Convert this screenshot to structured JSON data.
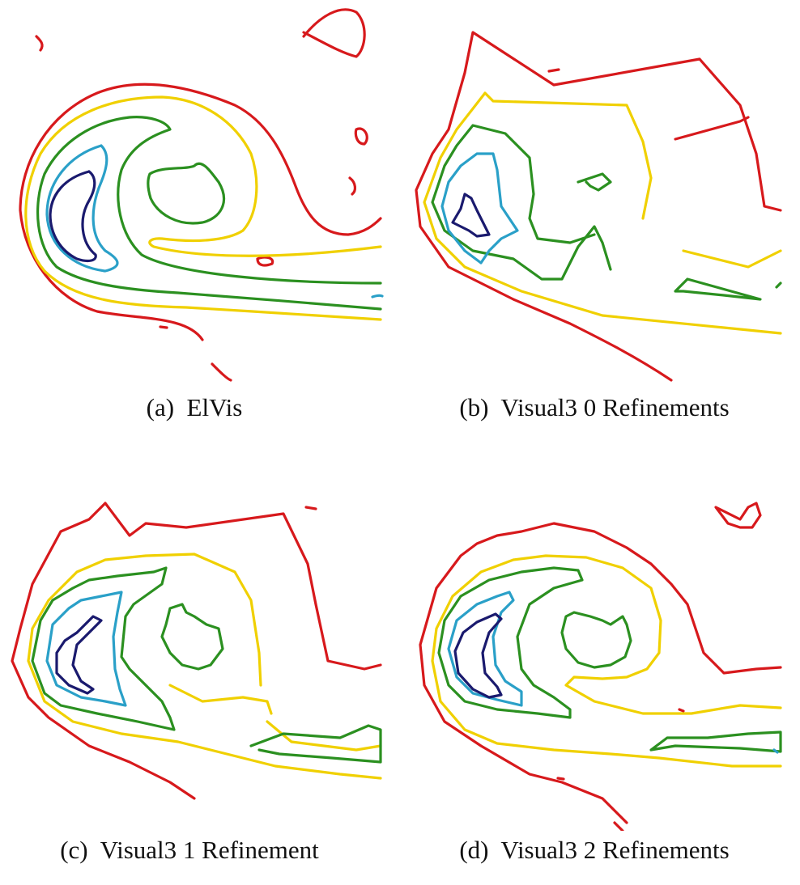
{
  "figure": {
    "panels": [
      {
        "id": "a",
        "caption": "(a)  ElVis"
      },
      {
        "id": "b",
        "caption": "(b)  Visual3 0 Refinements"
      },
      {
        "id": "c",
        "caption": "(c)  Visual3 1 Refinement"
      },
      {
        "id": "d",
        "caption": "(d)  Visual3 2 Refinements"
      }
    ],
    "contour_colors": {
      "level_1": "#d7191c",
      "level_2": "#f0d000",
      "level_3": "#2b9020",
      "level_4": "#2aa0c8",
      "level_5": "#1a1a6e"
    }
  }
}
